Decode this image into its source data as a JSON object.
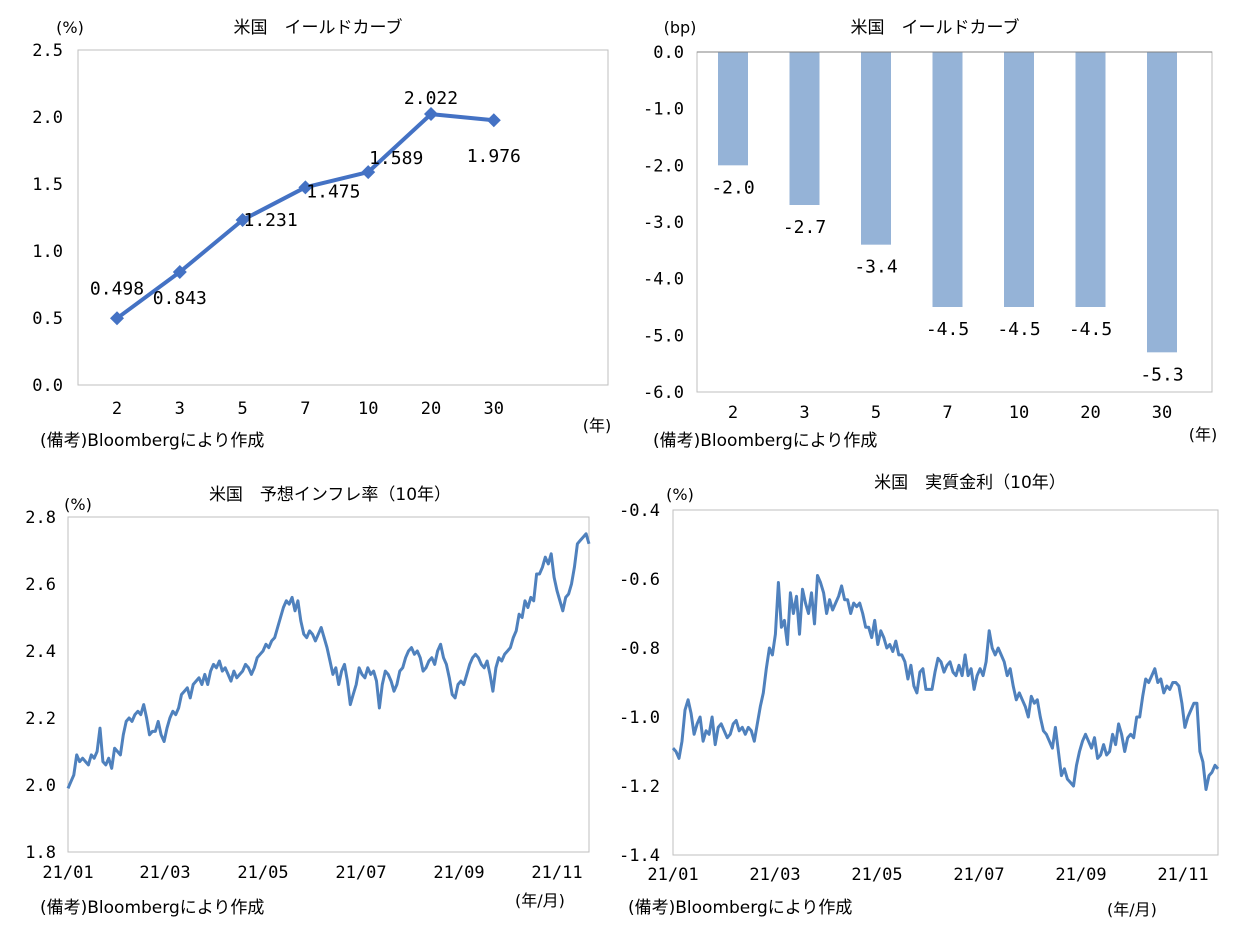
{
  "chart_data": [
    {
      "type": "line",
      "title": "米国　イールドカーブ",
      "unit_label": "(%)",
      "xlabel": "(年)",
      "note": "(備考)Bloombergにより作成",
      "categories": [
        "2",
        "3",
        "5",
        "7",
        "10",
        "20",
        "30"
      ],
      "values": [
        0.498,
        0.843,
        1.231,
        1.475,
        1.589,
        2.022,
        1.976
      ],
      "data_labels": [
        "0.498",
        "0.843",
        "1.231",
        "1.475",
        "1.589",
        "2.022",
        "1.976"
      ],
      "ylim": [
        0.0,
        2.5
      ],
      "yticks": [
        "0.0",
        "0.5",
        "1.0",
        "1.5",
        "2.0",
        "2.5"
      ],
      "marker": "diamond",
      "color": "#4472C4"
    },
    {
      "type": "bar",
      "title": "米国　イールドカーブ",
      "unit_label": "(bp)",
      "xlabel": "(年)",
      "note": "(備考)Bloombergにより作成",
      "categories": [
        "2",
        "3",
        "5",
        "7",
        "10",
        "20",
        "30"
      ],
      "values": [
        -2.0,
        -2.7,
        -3.4,
        -4.5,
        -4.5,
        -4.5,
        -5.3
      ],
      "data_labels": [
        "-2.0",
        "-2.7",
        "-3.4",
        "-4.5",
        "-4.5",
        "-4.5",
        "-5.3"
      ],
      "ylim": [
        -6.0,
        0.0
      ],
      "yticks": [
        "0.0",
        "-1.0",
        "-2.0",
        "-3.0",
        "-4.0",
        "-5.0",
        "-6.0"
      ],
      "color": "#95B3D7"
    },
    {
      "type": "line",
      "title": "米国　予想インフレ率（10年）",
      "unit_label": "(%)",
      "xlabel": "(年/月)",
      "note": "(備考)Bloombergにより作成",
      "xticks": [
        "21/01",
        "21/03",
        "21/05",
        "21/07",
        "21/09",
        "21/11"
      ],
      "ylim": [
        1.8,
        2.8
      ],
      "yticks": [
        "1.8",
        "2.0",
        "2.2",
        "2.4",
        "2.6",
        "2.8"
      ],
      "values": [
        1.99,
        2.01,
        2.03,
        2.09,
        2.07,
        2.08,
        2.07,
        2.06,
        2.09,
        2.08,
        2.1,
        2.17,
        2.07,
        2.06,
        2.08,
        2.05,
        2.11,
        2.1,
        2.09,
        2.15,
        2.19,
        2.2,
        2.19,
        2.21,
        2.22,
        2.21,
        2.24,
        2.2,
        2.15,
        2.16,
        2.16,
        2.19,
        2.15,
        2.13,
        2.17,
        2.2,
        2.22,
        2.21,
        2.23,
        2.27,
        2.28,
        2.29,
        2.26,
        2.3,
        2.31,
        2.32,
        2.3,
        2.33,
        2.3,
        2.34,
        2.36,
        2.35,
        2.37,
        2.34,
        2.35,
        2.33,
        2.31,
        2.34,
        2.32,
        2.33,
        2.34,
        2.36,
        2.35,
        2.33,
        2.35,
        2.38,
        2.39,
        2.4,
        2.42,
        2.41,
        2.43,
        2.44,
        2.47,
        2.5,
        2.53,
        2.55,
        2.54,
        2.56,
        2.52,
        2.55,
        2.49,
        2.45,
        2.44,
        2.46,
        2.45,
        2.43,
        2.45,
        2.47,
        2.44,
        2.41,
        2.37,
        2.33,
        2.35,
        2.3,
        2.34,
        2.36,
        2.31,
        2.24,
        2.27,
        2.3,
        2.35,
        2.33,
        2.32,
        2.35,
        2.33,
        2.34,
        2.31,
        2.23,
        2.3,
        2.34,
        2.33,
        2.31,
        2.28,
        2.3,
        2.34,
        2.35,
        2.38,
        2.4,
        2.41,
        2.39,
        2.4,
        2.38,
        2.34,
        2.35,
        2.37,
        2.38,
        2.36,
        2.4,
        2.42,
        2.38,
        2.36,
        2.32,
        2.27,
        2.26,
        2.3,
        2.31,
        2.3,
        2.33,
        2.36,
        2.38,
        2.39,
        2.38,
        2.36,
        2.35,
        2.37,
        2.33,
        2.28,
        2.35,
        2.38,
        2.37,
        2.39,
        2.4,
        2.41,
        2.44,
        2.46,
        2.51,
        2.5,
        2.55,
        2.53,
        2.56,
        2.55,
        2.63,
        2.63,
        2.65,
        2.68,
        2.66,
        2.69,
        2.62,
        2.58,
        2.55,
        2.52,
        2.56,
        2.57,
        2.6,
        2.65,
        2.72,
        2.73,
        2.74,
        2.75,
        2.72
      ],
      "color": "#4F81BD"
    },
    {
      "type": "line",
      "title": "米国　実質金利（10年）",
      "unit_label": "(%)",
      "xlabel": "(年/月)",
      "note": "(備考)Bloombergにより作成",
      "xticks": [
        "21/01",
        "21/03",
        "21/05",
        "21/07",
        "21/09",
        "21/11"
      ],
      "ylim": [
        -1.4,
        -0.4
      ],
      "yticks": [
        "-0.4",
        "-0.6",
        "-0.8",
        "-1.0",
        "-1.2",
        "-1.4"
      ],
      "values": [
        -1.09,
        -1.1,
        -1.12,
        -1.07,
        -0.98,
        -0.95,
        -0.99,
        -1.05,
        -1.02,
        -1.0,
        -1.07,
        -1.04,
        -1.05,
        -1.0,
        -1.08,
        -1.03,
        -1.02,
        -1.04,
        -1.06,
        -1.05,
        -1.02,
        -1.01,
        -1.04,
        -1.03,
        -1.05,
        -1.03,
        -1.04,
        -1.07,
        -1.02,
        -0.97,
        -0.93,
        -0.86,
        -0.8,
        -0.82,
        -0.76,
        -0.61,
        -0.74,
        -0.72,
        -0.79,
        -0.64,
        -0.7,
        -0.65,
        -0.76,
        -0.63,
        -0.67,
        -0.7,
        -0.64,
        -0.73,
        -0.59,
        -0.61,
        -0.64,
        -0.7,
        -0.66,
        -0.69,
        -0.67,
        -0.65,
        -0.62,
        -0.66,
        -0.66,
        -0.7,
        -0.67,
        -0.68,
        -0.67,
        -0.7,
        -0.74,
        -0.74,
        -0.77,
        -0.72,
        -0.79,
        -0.75,
        -0.77,
        -0.8,
        -0.79,
        -0.81,
        -0.78,
        -0.82,
        -0.82,
        -0.84,
        -0.89,
        -0.85,
        -0.91,
        -0.93,
        -0.87,
        -0.86,
        -0.92,
        -0.92,
        -0.92,
        -0.87,
        -0.83,
        -0.84,
        -0.87,
        -0.85,
        -0.84,
        -0.87,
        -0.88,
        -0.85,
        -0.88,
        -0.82,
        -0.88,
        -0.86,
        -0.92,
        -0.88,
        -0.86,
        -0.88,
        -0.84,
        -0.75,
        -0.8,
        -0.82,
        -0.8,
        -0.82,
        -0.84,
        -0.88,
        -0.86,
        -0.91,
        -0.95,
        -0.93,
        -0.95,
        -0.97,
        -1.0,
        -0.94,
        -0.96,
        -0.95,
        -1.0,
        -1.04,
        -1.05,
        -1.07,
        -1.09,
        -1.03,
        -1.1,
        -1.17,
        -1.15,
        -1.18,
        -1.19,
        -1.2,
        -1.14,
        -1.1,
        -1.07,
        -1.05,
        -1.07,
        -1.09,
        -1.06,
        -1.12,
        -1.11,
        -1.08,
        -1.11,
        -1.1,
        -1.05,
        -1.08,
        -1.02,
        -1.05,
        -1.1,
        -1.06,
        -1.05,
        -1.06,
        -1.0,
        -1.0,
        -0.94,
        -0.89,
        -0.9,
        -0.88,
        -0.86,
        -0.9,
        -0.89,
        -0.93,
        -0.91,
        -0.92,
        -0.9,
        -0.9,
        -0.91,
        -0.96,
        -1.03,
        -1.0,
        -0.98,
        -0.96,
        -0.96,
        -1.1,
        -1.13,
        -1.21,
        -1.17,
        -1.16,
        -1.14,
        -1.15
      ],
      "color": "#4F81BD"
    }
  ]
}
